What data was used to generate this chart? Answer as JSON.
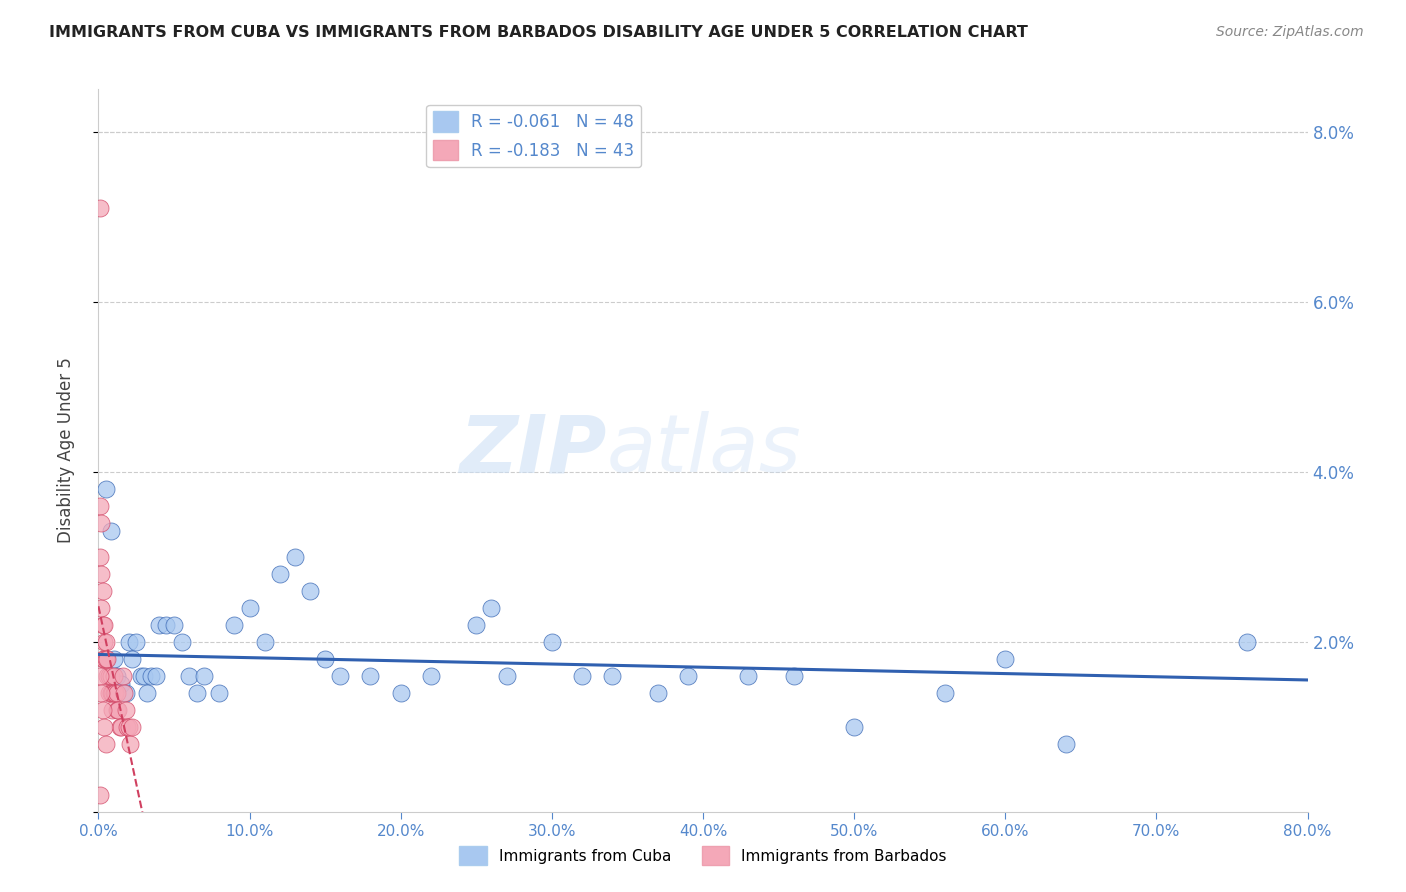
{
  "title": "IMMIGRANTS FROM CUBA VS IMMIGRANTS FROM BARBADOS DISABILITY AGE UNDER 5 CORRELATION CHART",
  "source": "Source: ZipAtlas.com",
  "xlabel": "",
  "ylabel": "Disability Age Under 5",
  "watermark": "ZIPatlas",
  "legend_cuba": "Immigrants from Cuba",
  "legend_barbados": "Immigrants from Barbados",
  "R_cuba": -0.061,
  "N_cuba": 48,
  "R_barbados": -0.183,
  "N_barbados": 43,
  "xlim": [
    0,
    0.8
  ],
  "ylim": [
    0,
    0.085
  ],
  "xticks": [
    0.0,
    0.1,
    0.2,
    0.3,
    0.4,
    0.5,
    0.6,
    0.7,
    0.8
  ],
  "yticks_right": [
    0.02,
    0.04,
    0.06,
    0.08
  ],
  "color_cuba": "#a8c8f0",
  "color_barbados": "#f4a8b8",
  "color_trend_cuba": "#3060b0",
  "color_trend_barbados": "#d04060",
  "background": "#ffffff",
  "title_color": "#222222",
  "axis_color": "#5588cc",
  "grid_color": "#cccccc",
  "cuba_x": [
    0.005,
    0.008,
    0.01,
    0.012,
    0.015,
    0.018,
    0.02,
    0.022,
    0.025,
    0.028,
    0.03,
    0.032,
    0.035,
    0.038,
    0.04,
    0.045,
    0.05,
    0.055,
    0.06,
    0.065,
    0.07,
    0.08,
    0.09,
    0.1,
    0.11,
    0.12,
    0.13,
    0.14,
    0.15,
    0.16,
    0.18,
    0.2,
    0.22,
    0.25,
    0.26,
    0.27,
    0.3,
    0.32,
    0.34,
    0.37,
    0.39,
    0.43,
    0.46,
    0.5,
    0.56,
    0.6,
    0.64,
    0.76
  ],
  "cuba_y": [
    0.038,
    0.033,
    0.018,
    0.016,
    0.015,
    0.014,
    0.02,
    0.018,
    0.02,
    0.016,
    0.016,
    0.014,
    0.016,
    0.016,
    0.022,
    0.022,
    0.022,
    0.02,
    0.016,
    0.014,
    0.016,
    0.014,
    0.022,
    0.024,
    0.02,
    0.028,
    0.03,
    0.026,
    0.018,
    0.016,
    0.016,
    0.014,
    0.016,
    0.022,
    0.024,
    0.016,
    0.02,
    0.016,
    0.016,
    0.014,
    0.016,
    0.016,
    0.016,
    0.01,
    0.014,
    0.018,
    0.008,
    0.02
  ],
  "barbados_x": [
    0.001,
    0.001,
    0.001,
    0.002,
    0.002,
    0.002,
    0.003,
    0.003,
    0.003,
    0.004,
    0.004,
    0.004,
    0.005,
    0.005,
    0.006,
    0.006,
    0.007,
    0.007,
    0.008,
    0.008,
    0.009,
    0.009,
    0.01,
    0.01,
    0.011,
    0.012,
    0.012,
    0.013,
    0.014,
    0.015,
    0.016,
    0.017,
    0.018,
    0.019,
    0.02,
    0.021,
    0.022,
    0.001,
    0.002,
    0.003,
    0.004,
    0.005,
    0.001
  ],
  "barbados_y": [
    0.071,
    0.036,
    0.03,
    0.034,
    0.028,
    0.024,
    0.026,
    0.022,
    0.018,
    0.022,
    0.02,
    0.018,
    0.02,
    0.018,
    0.018,
    0.016,
    0.016,
    0.014,
    0.016,
    0.014,
    0.014,
    0.012,
    0.016,
    0.014,
    0.014,
    0.014,
    0.012,
    0.012,
    0.01,
    0.01,
    0.016,
    0.014,
    0.012,
    0.01,
    0.01,
    0.008,
    0.01,
    0.016,
    0.014,
    0.012,
    0.01,
    0.008,
    0.002
  ]
}
